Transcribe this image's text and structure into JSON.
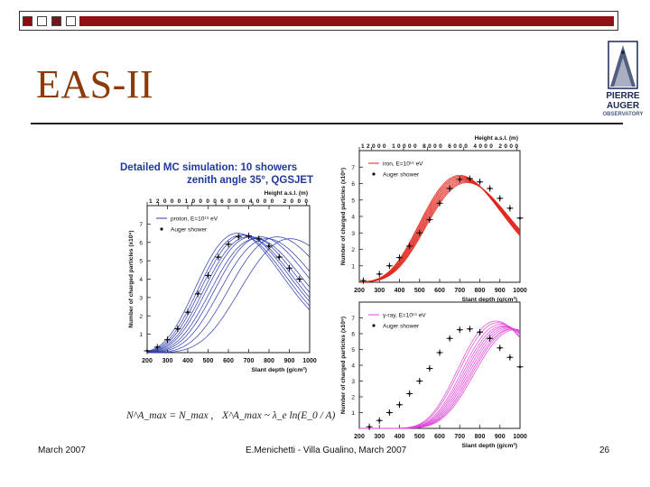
{
  "slide": {
    "title": "EAS-II",
    "footer_left": "March 2007",
    "footer_center": "E.Menichetti - Villa Gualino, March 2007",
    "page_number": "26",
    "logo_lines": [
      "PIERRE",
      "AUGER",
      "OBSERVATORY"
    ]
  },
  "colors": {
    "title": "#8b3a08",
    "bar": "#8c1414",
    "proton": "#2b3bb0",
    "iron": "#e0241a",
    "gamma": "#e040d8"
  },
  "figure_header": [
    "Detailed MC simulation: 10 showers",
    "zenith angle 35°, QGSJET"
  ],
  "formula": {
    "part1": "N^A_max = N_max ,",
    "part2": "X^A_max ~ λ_e ln(E_0 / A)"
  },
  "chart_data": [
    {
      "type": "line",
      "panel": "proton",
      "xlabel": "Slant depth (g/cm²)",
      "ylabel": "Number of charged particles (x10⁹)",
      "top_axis_label": "Height a.s.l. (m)",
      "top_ticks": [
        "12000",
        "10000",
        "8000",
        "6000",
        "4000",
        "2000"
      ],
      "top_ticks_display": "120001000060004000 2000",
      "top_tick_positions": [
        200,
        255,
        420,
        538,
        720,
        985
      ],
      "xlim": [
        200,
        1000
      ],
      "ylim": [
        0,
        8
      ],
      "xticks": [
        200,
        300,
        400,
        500,
        600,
        700,
        800,
        900,
        1000
      ],
      "yticks": [
        1,
        2,
        3,
        4,
        5,
        6,
        7
      ],
      "legend": [
        {
          "label": "proton, E=10¹⁹ eV",
          "kind": "line"
        },
        {
          "label": "Auger shower",
          "kind": "marker"
        }
      ],
      "sim_showers": [
        {
          "xmax": 645,
          "nmax": 6.5
        },
        {
          "xmax": 662,
          "nmax": 6.4
        },
        {
          "xmax": 678,
          "nmax": 6.4
        },
        {
          "xmax": 695,
          "nmax": 6.3
        },
        {
          "xmax": 712,
          "nmax": 6.3
        },
        {
          "xmax": 735,
          "nmax": 6.2
        },
        {
          "xmax": 760,
          "nmax": 6.3
        },
        {
          "xmax": 790,
          "nmax": 6.2
        },
        {
          "xmax": 840,
          "nmax": 6.3
        },
        {
          "xmax": 905,
          "nmax": 6.2
        }
      ],
      "shower_width_lambda": 70,
      "shower_x0": 0,
      "auger_points": [
        {
          "x": 200,
          "y": 0.1
        },
        {
          "x": 250,
          "y": 0.3
        },
        {
          "x": 300,
          "y": 0.7
        },
        {
          "x": 350,
          "y": 1.3
        },
        {
          "x": 400,
          "y": 2.2
        },
        {
          "x": 450,
          "y": 3.2
        },
        {
          "x": 500,
          "y": 4.2
        },
        {
          "x": 550,
          "y": 5.2
        },
        {
          "x": 600,
          "y": 5.9
        },
        {
          "x": 650,
          "y": 6.3
        },
        {
          "x": 700,
          "y": 6.35
        },
        {
          "x": 750,
          "y": 6.2
        },
        {
          "x": 800,
          "y": 5.8
        },
        {
          "x": 850,
          "y": 5.2
        },
        {
          "x": 900,
          "y": 4.6
        },
        {
          "x": 950,
          "y": 4.0
        }
      ]
    },
    {
      "type": "line",
      "panel": "iron",
      "xlabel": "Slant depth (g/cm²)",
      "ylabel": "Number of charged particles (x10⁹)",
      "top_axis_label": "Height a.s.l. (m)",
      "top_ticks": [
        "12000",
        "10000",
        "8000",
        "6000",
        "4000",
        "2000"
      ],
      "top_ticks_display": "12000 10000 8000 6000 4000 2000",
      "top_tick_positions": [
        200,
        260,
        420,
        540,
        720,
        985
      ],
      "xlim": [
        200,
        1000
      ],
      "ylim": [
        0,
        8
      ],
      "xticks": [
        200,
        300,
        400,
        500,
        600,
        700,
        800,
        900,
        1000
      ],
      "yticks": [
        1,
        2,
        3,
        4,
        5,
        6,
        7
      ],
      "legend": [
        {
          "label": "iron, E=10¹⁹ eV",
          "kind": "line"
        },
        {
          "label": "Auger shower",
          "kind": "marker"
        }
      ],
      "sim_showers": [
        {
          "xmax": 700,
          "nmax": 6.5
        },
        {
          "xmax": 704,
          "nmax": 6.45
        },
        {
          "xmax": 708,
          "nmax": 6.4
        },
        {
          "xmax": 712,
          "nmax": 6.35
        },
        {
          "xmax": 716,
          "nmax": 6.3
        },
        {
          "xmax": 720,
          "nmax": 6.25
        },
        {
          "xmax": 724,
          "nmax": 6.2
        },
        {
          "xmax": 728,
          "nmax": 6.15
        },
        {
          "xmax": 732,
          "nmax": 6.1
        },
        {
          "xmax": 736,
          "nmax": 6.05
        }
      ],
      "shower_width_lambda": 60,
      "shower_x0": 0,
      "auger_points": [
        {
          "x": 220,
          "y": 0.1
        },
        {
          "x": 300,
          "y": 0.5
        },
        {
          "x": 350,
          "y": 1.0
        },
        {
          "x": 400,
          "y": 1.5
        },
        {
          "x": 450,
          "y": 2.2
        },
        {
          "x": 500,
          "y": 3.0
        },
        {
          "x": 550,
          "y": 3.8
        },
        {
          "x": 600,
          "y": 4.8
        },
        {
          "x": 650,
          "y": 5.7
        },
        {
          "x": 700,
          "y": 6.25
        },
        {
          "x": 750,
          "y": 6.3
        },
        {
          "x": 800,
          "y": 6.1
        },
        {
          "x": 850,
          "y": 5.7
        },
        {
          "x": 900,
          "y": 5.1
        },
        {
          "x": 950,
          "y": 4.5
        },
        {
          "x": 1000,
          "y": 3.9
        }
      ]
    },
    {
      "type": "line",
      "panel": "gamma",
      "xlabel": "Slant depth (g/cm²)",
      "ylabel": "Number of charged particles (x10⁹)",
      "xlim": [
        200,
        1000
      ],
      "ylim": [
        0,
        8
      ],
      "xticks": [
        200,
        300,
        400,
        500,
        600,
        700,
        800,
        900,
        1000
      ],
      "yticks": [
        1,
        2,
        3,
        4,
        5,
        6,
        7
      ],
      "legend": [
        {
          "label": "γ-ray, E=10¹⁹ eV",
          "kind": "line"
        },
        {
          "label": "Auger shower",
          "kind": "marker"
        }
      ],
      "sim_showers": [
        {
          "xmax": 880,
          "nmax": 6.8
        },
        {
          "xmax": 890,
          "nmax": 6.7
        },
        {
          "xmax": 905,
          "nmax": 6.6
        },
        {
          "xmax": 915,
          "nmax": 6.5
        },
        {
          "xmax": 925,
          "nmax": 6.45
        },
        {
          "xmax": 935,
          "nmax": 6.4
        },
        {
          "xmax": 945,
          "nmax": 6.35
        },
        {
          "xmax": 955,
          "nmax": 6.3
        },
        {
          "xmax": 965,
          "nmax": 6.3
        },
        {
          "xmax": 975,
          "nmax": 6.25
        }
      ],
      "shower_width_lambda": 55,
      "shower_x0": 200,
      "auger_points": [
        {
          "x": 250,
          "y": 0.1
        },
        {
          "x": 300,
          "y": 0.5
        },
        {
          "x": 350,
          "y": 1.0
        },
        {
          "x": 400,
          "y": 1.5
        },
        {
          "x": 450,
          "y": 2.2
        },
        {
          "x": 500,
          "y": 3.0
        },
        {
          "x": 550,
          "y": 3.8
        },
        {
          "x": 600,
          "y": 4.8
        },
        {
          "x": 650,
          "y": 5.7
        },
        {
          "x": 700,
          "y": 6.25
        },
        {
          "x": 750,
          "y": 6.3
        },
        {
          "x": 800,
          "y": 6.1
        },
        {
          "x": 850,
          "y": 5.7
        },
        {
          "x": 900,
          "y": 5.1
        },
        {
          "x": 950,
          "y": 4.5
        },
        {
          "x": 1000,
          "y": 3.9
        }
      ]
    }
  ]
}
